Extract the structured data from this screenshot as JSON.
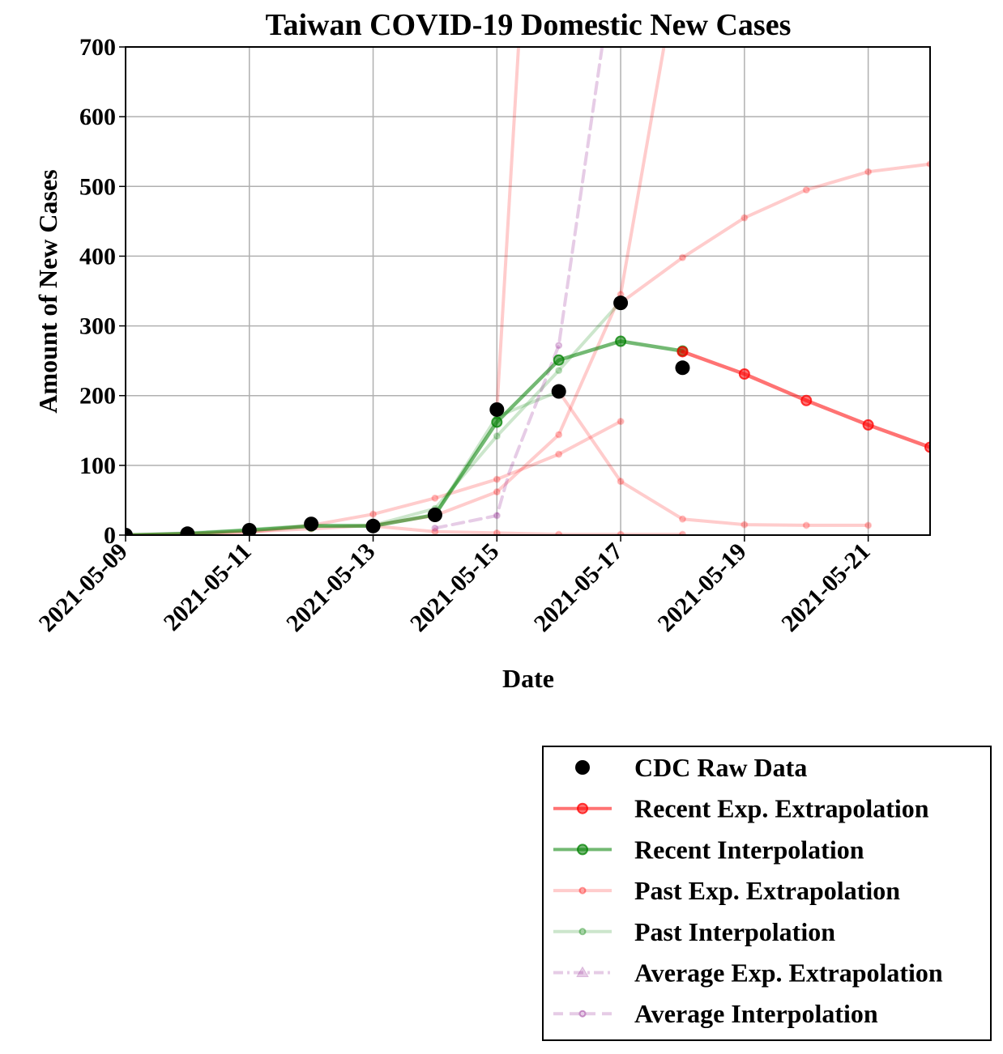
{
  "chart_data": {
    "type": "line",
    "title": "Taiwan COVID-19 Domestic New Cases",
    "xlabel": "Date",
    "ylabel": "Amount of New Cases",
    "xlim": [
      "2021-05-09",
      "2021-05-22"
    ],
    "ylim": [
      0,
      700
    ],
    "grid": true,
    "legend_position": "bottom-right, below plot",
    "x_ticks": [
      "2021-05-09",
      "2021-05-11",
      "2021-05-13",
      "2021-05-15",
      "2021-05-17",
      "2021-05-19",
      "2021-05-21"
    ],
    "y_ticks": [
      "0",
      "100",
      "200",
      "300",
      "400",
      "500",
      "600",
      "700"
    ],
    "series": [
      {
        "name": "CDC Raw Data",
        "kind": "scatter",
        "color": "#000000",
        "points": [
          [
            "2021-05-09",
            0
          ],
          [
            "2021-05-10",
            2
          ],
          [
            "2021-05-11",
            7
          ],
          [
            "2021-05-12",
            16
          ],
          [
            "2021-05-13",
            13
          ],
          [
            "2021-05-14",
            29
          ],
          [
            "2021-05-15",
            180
          ],
          [
            "2021-05-16",
            206
          ],
          [
            "2021-05-17",
            333
          ],
          [
            "2021-05-18",
            240
          ]
        ]
      },
      {
        "name": "Recent Exp. Extrapolation",
        "kind": "line",
        "color": "#ff0000",
        "opacity": 0.55,
        "points": [
          [
            "2021-05-18",
            263
          ],
          [
            "2021-05-19",
            231
          ],
          [
            "2021-05-20",
            193
          ],
          [
            "2021-05-21",
            158
          ],
          [
            "2021-05-22",
            126
          ]
        ]
      },
      {
        "name": "Recent Interpolation",
        "kind": "line",
        "color": "#008000",
        "opacity": 0.55,
        "points": [
          [
            "2021-05-09",
            0
          ],
          [
            "2021-05-10",
            2
          ],
          [
            "2021-05-11",
            7
          ],
          [
            "2021-05-12",
            13
          ],
          [
            "2021-05-13",
            13
          ],
          [
            "2021-05-14",
            29
          ],
          [
            "2021-05-15",
            162
          ],
          [
            "2021-05-16",
            251
          ],
          [
            "2021-05-17",
            278
          ],
          [
            "2021-05-18",
            264
          ]
        ]
      },
      {
        "name": "Past Exp. Extrapolation",
        "kind": "lines",
        "color": "#ff0000",
        "opacity": 0.2,
        "lines": [
          [
            [
              "2021-05-09",
              0
            ],
            [
              "2021-05-10",
              1
            ],
            [
              "2021-05-11",
              4
            ],
            [
              "2021-05-12",
              14
            ],
            [
              "2021-05-13",
              30
            ],
            [
              "2021-05-14",
              53
            ],
            [
              "2021-05-15",
              80
            ],
            [
              "2021-05-16",
              116
            ],
            [
              "2021-05-17",
              163
            ]
          ],
          [
            [
              "2021-05-09",
              0
            ],
            [
              "2021-05-10",
              2
            ],
            [
              "2021-05-11",
              5
            ],
            [
              "2021-05-12",
              9
            ],
            [
              "2021-05-13",
              14
            ],
            [
              "2021-05-14",
              28
            ],
            [
              "2021-05-15",
              62
            ],
            [
              "2021-05-16",
              144
            ],
            [
              "2021-05-17",
              345
            ],
            [
              "2021-05-17.7",
              700
            ]
          ],
          [
            [
              "2021-05-15",
              180
            ],
            [
              "2021-05-15.35",
              700
            ]
          ],
          [
            [
              "2021-05-16",
              206
            ],
            [
              "2021-05-17",
              77
            ],
            [
              "2021-05-18",
              23
            ],
            [
              "2021-05-19",
              15
            ],
            [
              "2021-05-20",
              14
            ],
            [
              "2021-05-21",
              14
            ]
          ],
          [
            [
              "2021-05-17",
              333
            ],
            [
              "2021-05-18",
              398
            ],
            [
              "2021-05-19",
              455
            ],
            [
              "2021-05-20",
              495
            ],
            [
              "2021-05-21",
              521
            ],
            [
              "2021-05-22",
              532
            ]
          ],
          [
            [
              "2021-05-13",
              13
            ],
            [
              "2021-05-14",
              5
            ],
            [
              "2021-05-15",
              3
            ],
            [
              "2021-05-16",
              1
            ],
            [
              "2021-05-17",
              1
            ],
            [
              "2021-05-18",
              1
            ]
          ]
        ]
      },
      {
        "name": "Past Interpolation",
        "kind": "lines",
        "color": "#008000",
        "opacity": 0.2,
        "lines": [
          [
            [
              "2021-05-09",
              0
            ],
            [
              "2021-05-10",
              3
            ],
            [
              "2021-05-11",
              8
            ],
            [
              "2021-05-12",
              14
            ],
            [
              "2021-05-13",
              14
            ],
            [
              "2021-05-14",
              38
            ],
            [
              "2021-05-15",
              142
            ],
            [
              "2021-05-16",
              236
            ],
            [
              "2021-05-17",
              335
            ]
          ],
          [
            [
              "2021-05-14",
              29
            ],
            [
              "2021-05-15",
              170
            ],
            [
              "2021-05-16",
              206
            ]
          ]
        ]
      },
      {
        "name": "Average Exp. Extrapolation",
        "kind": "line",
        "color": "#800080",
        "opacity": 0.2,
        "points": []
      },
      {
        "name": "Average Interpolation",
        "kind": "line",
        "color": "#800080",
        "opacity": 0.2,
        "points": [
          [
            "2021-05-14",
            10
          ],
          [
            "2021-05-15",
            28
          ],
          [
            "2021-05-15.2",
            90
          ],
          [
            "2021-05-16",
            272
          ],
          [
            "2021-05-16.7",
            700
          ]
        ]
      }
    ]
  }
}
